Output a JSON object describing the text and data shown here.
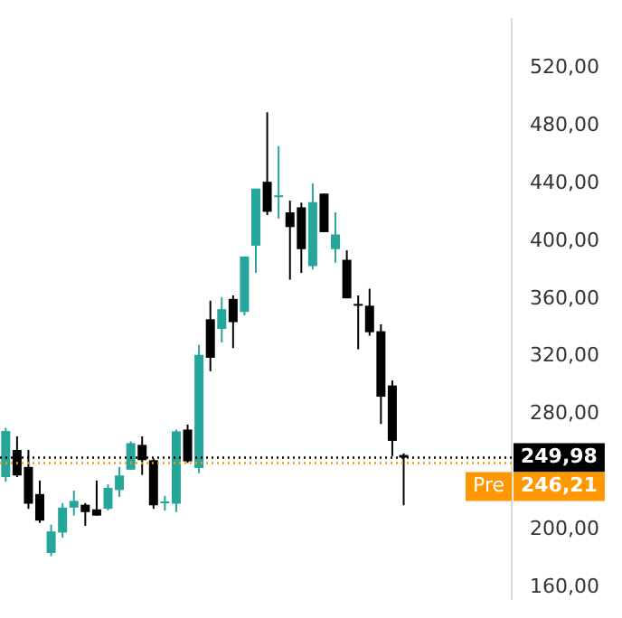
{
  "chart_data": {
    "type": "candlestick",
    "categories": [
      null,
      null,
      null,
      null,
      null,
      null,
      null,
      null,
      null,
      null,
      null,
      null,
      null,
      null,
      null,
      null,
      null,
      null,
      null,
      null,
      null,
      null,
      null,
      null,
      null,
      null,
      null,
      null,
      null,
      null,
      null,
      null,
      null,
      null,
      null,
      null,
      null,
      null,
      null,
      null,
      null,
      null,
      null,
      null,
      null
    ],
    "ohlc": [
      [
        236.5,
        270.6,
        233.3,
        268.4
      ],
      [
        255.3,
        264.7,
        236.5,
        237.6
      ],
      [
        243.5,
        255.3,
        214.5,
        218.0
      ],
      [
        224.7,
        234.1,
        204.7,
        206.3
      ],
      [
        183.9,
        203.5,
        181.6,
        198.8
      ],
      [
        198.0,
        218.4,
        194.5,
        215.3
      ],
      [
        215.3,
        227.1,
        209.8,
        220.0
      ],
      [
        217.3,
        218.4,
        202.7,
        212.2
      ],
      [
        214.1,
        234.1,
        209.8,
        209.8
      ],
      [
        214.5,
        231.4,
        213.3,
        229.0
      ],
      [
        227.5,
        243.5,
        222.7,
        237.6
      ],
      [
        241.6,
        261.2,
        241.6,
        260.0
      ],
      [
        258.8,
        264.7,
        238.0,
        248.2
      ],
      [
        248.2,
        249.4,
        214.5,
        216.9
      ],
      [
        218.8,
        223.5,
        213.3,
        219.6
      ],
      [
        218.0,
        269.4,
        212.2,
        268.2
      ],
      [
        269.4,
        272.9,
        246.3,
        247.4
      ],
      [
        242.7,
        328.2,
        239.2,
        321.2
      ],
      [
        345.9,
        358.8,
        309.8,
        319.2
      ],
      [
        339.2,
        361.2,
        329.8,
        352.9
      ],
      [
        360.0,
        362.4,
        325.9,
        343.9
      ],
      [
        351.0,
        389.4,
        348.6,
        389.4
      ],
      [
        396.9,
        436.5,
        378.0,
        436.5
      ],
      [
        441.2,
        489.4,
        418.1,
        420.4
      ],
      [
        431.0,
        465.9,
        415.7,
        431.8
      ],
      [
        420.0,
        428.2,
        373.3,
        409.8
      ],
      [
        423.5,
        426.7,
        378.0,
        394.5
      ],
      [
        382.7,
        440.0,
        380.4,
        427.1
      ],
      [
        433.0,
        433.0,
        406.3,
        406.3
      ],
      [
        394.5,
        420.0,
        385.1,
        404.7
      ],
      [
        387.1,
        393.7,
        360.4,
        360.4
      ],
      [
        356.5,
        362.4,
        325.1,
        355.7
      ],
      [
        355.3,
        367.1,
        334.5,
        336.9
      ],
      [
        337.6,
        342.4,
        273.3,
        292.2
      ],
      [
        300.0,
        303.5,
        251.0,
        261.6
      ],
      [
        251.8,
        252.9,
        216.9,
        249.98
      ],
      null,
      null,
      null,
      null,
      null,
      null,
      null,
      null,
      null
    ],
    "colors": [
      "#26a69a",
      "#000000",
      "#000000",
      "#000000",
      "#26a69a",
      "#26a69a",
      "#26a69a",
      "#000000",
      "#000000",
      "#26a69a",
      "#26a69a",
      "#26a69a",
      "#000000",
      "#000000",
      "#26a69a",
      "#26a69a",
      "#000000",
      "#26a69a",
      "#000000",
      "#26a69a",
      "#000000",
      "#26a69a",
      "#26a69a",
      "#000000",
      "#26a69a",
      "#000000",
      "#000000",
      "#26a69a",
      "#000000",
      "#26a69a",
      "#000000",
      "#000000",
      "#000000",
      "#000000",
      "#000000",
      "#000000",
      null,
      null,
      null,
      null,
      null,
      null,
      null,
      null,
      null
    ],
    "ylim": [
      152,
      554
    ],
    "yticks": [
      {
        "value": 160,
        "label": "160,00"
      },
      {
        "value": 200,
        "label": "200,00"
      },
      {
        "value": 280,
        "label": "280,00"
      },
      {
        "value": 320,
        "label": "320,00"
      },
      {
        "value": 360,
        "label": "360,00"
      },
      {
        "value": 400,
        "label": "400,00"
      },
      {
        "value": 440,
        "label": "440,00"
      },
      {
        "value": 480,
        "label": "480,00"
      },
      {
        "value": 520,
        "label": "520,00"
      }
    ],
    "ref_lines": [
      {
        "axis": "y",
        "value": 249.98,
        "label": "249,98",
        "color": "#000000",
        "line_style": "dotted"
      },
      {
        "axis": "y",
        "value": 246.21,
        "label": "246,21",
        "color": "#ff9800",
        "line_style": "dotted"
      }
    ],
    "annotations": [
      {
        "text": "Pre",
        "y": 246.21
      }
    ],
    "grid": false
  }
}
